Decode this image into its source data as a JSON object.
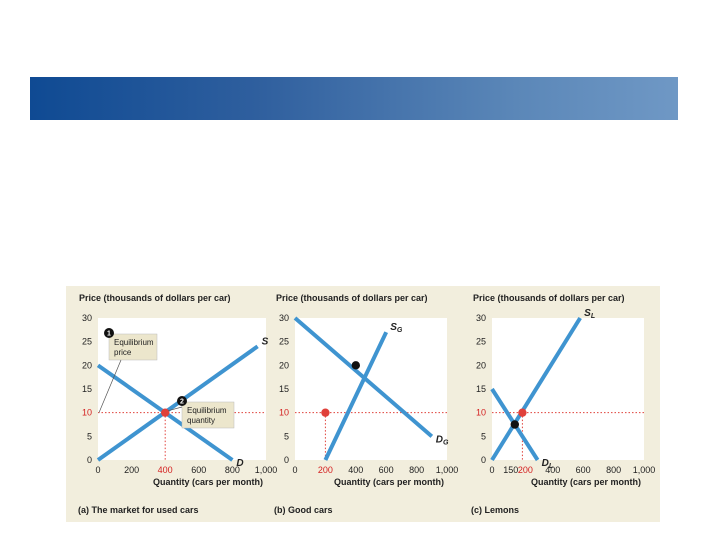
{
  "chart_data": [
    {
      "type": "line",
      "panel": "a",
      "title": "(a) The market for used cars",
      "ylabel": "Price (thousands of dollars per car)",
      "xlabel": "Quantity (cars per month)",
      "xlim": [
        0,
        1000
      ],
      "ylim": [
        0,
        30
      ],
      "xticks": [
        "0",
        "200",
        "400",
        "600",
        "800",
        "1,000"
      ],
      "yticks": [
        "0",
        "5",
        "10",
        "15",
        "20",
        "25",
        "30"
      ],
      "highlight_xtick": "400",
      "highlight_ytick": "10",
      "series": [
        {
          "name": "S",
          "sub": "",
          "points": [
            [
              0,
              0
            ],
            [
              950,
              24
            ]
          ]
        },
        {
          "name": "D",
          "sub": "",
          "points": [
            [
              0,
              20
            ],
            [
              800,
              0
            ]
          ]
        }
      ],
      "equilibrium": {
        "x": 400,
        "y": 10,
        "color": "#e0403a"
      },
      "callouts": [
        {
          "badge": "1",
          "lines": [
            "Equilibrium",
            "price"
          ]
        },
        {
          "badge": "2",
          "lines": [
            "Equilibrium",
            "quantity"
          ]
        }
      ]
    },
    {
      "type": "line",
      "panel": "b",
      "title": "(b) Good cars",
      "ylabel": "Price (thousands of dollars per car)",
      "xlabel": "Quantity (cars per month)",
      "xlim": [
        0,
        1000
      ],
      "ylim": [
        0,
        30
      ],
      "xticks": [
        "0",
        "200",
        "400",
        "600",
        "800",
        "1,000"
      ],
      "yticks": [
        "0",
        "5",
        "10",
        "15",
        "20",
        "25",
        "30"
      ],
      "highlight_xtick": "200",
      "highlight_ytick": "10",
      "series": [
        {
          "name": "S",
          "sub": "G",
          "points": [
            [
              200,
              0
            ],
            [
              600,
              27
            ]
          ]
        },
        {
          "name": "D",
          "sub": "G",
          "points": [
            [
              0,
              30
            ],
            [
              900,
              5
            ]
          ]
        }
      ],
      "points": [
        {
          "x": 400,
          "y": 20,
          "color": "#111111"
        },
        {
          "x": 200,
          "y": 10,
          "color": "#e0403a"
        }
      ]
    },
    {
      "type": "line",
      "panel": "c",
      "title": "(c) Lemons",
      "ylabel": "Price (thousands of dollars per car)",
      "xlabel": "Quantity (cars per month)",
      "xlim": [
        0,
        1000
      ],
      "ylim": [
        0,
        30
      ],
      "xticks": [
        "0",
        "150",
        "200",
        "400",
        "600",
        "800",
        "1,000"
      ],
      "yticks": [
        "0",
        "5",
        "10",
        "15",
        "20",
        "25",
        "30"
      ],
      "highlight_xtick": "200",
      "highlight_ytick": "10",
      "series": [
        {
          "name": "S",
          "sub": "L",
          "points": [
            [
              0,
              0
            ],
            [
              580,
              30
            ]
          ]
        },
        {
          "name": "D",
          "sub": "L",
          "points": [
            [
              0,
              15
            ],
            [
              300,
              0
            ]
          ]
        }
      ],
      "points": [
        {
          "x": 150,
          "y": 7.5,
          "color": "#111111"
        },
        {
          "x": 200,
          "y": 10,
          "color": "#e0403a"
        }
      ]
    }
  ]
}
